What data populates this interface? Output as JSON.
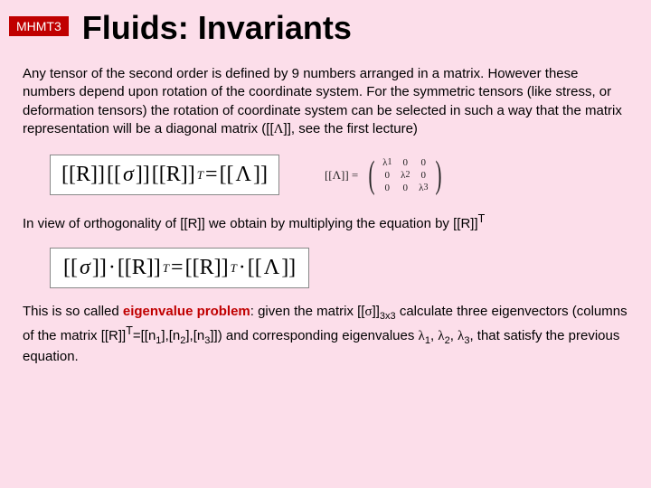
{
  "header": {
    "course_tag": "MHMT3",
    "title": "Fluids: Invariants",
    "bg_color": "#fcdeea",
    "tag_bg": "#c00000",
    "title_fontsize": 36
  },
  "paragraphs": {
    "p1_a": "Any tensor of the second order is defined by 9 numbers arranged in a matrix. However these numbers depend upon rotation of the coordinate system. For the symmetric tensors (like stress, or deformation tensors) the rotation of coordinate system can be selected in such a way that the matrix representation will be a diagonal matrix ([[",
    "p1_lambda": "Λ",
    "p1_b": "]], see the first lecture)",
    "p2_a": "In view of orthogonality of [[R]] we obtain by multiplying the equation by [[R]]",
    "p2_supT": "T",
    "p3_a": "This is so called ",
    "p3_eigen": "eigenvalue problem",
    "p3_b": ": given the matrix [[",
    "p3_sigma": "σ",
    "p3_c": "]]",
    "p3_dim": "3x3",
    "p3_d": " calculate three eigenvectors (columns of the matrix [[R]]",
    "p3_supT": "T",
    "p3_e": "=[[n",
    "p3_n1": "1",
    "p3_f": "],[n",
    "p3_n2": "2",
    "p3_g": "],[n",
    "p3_n3": "3",
    "p3_h": "]]) and corresponding eigenvalues ",
    "p3_l": "λ",
    "p3_l1": "1",
    "p3_l2": "2",
    "p3_l3": "3",
    "p3_i": ", that satisfy the previous equation."
  },
  "eq1": {
    "R": "[[R]]",
    "sigma": "σ",
    "eq": " = ",
    "Lambda": "Λ",
    "T": "T",
    "dot": "[["
  },
  "eq_small": {
    "lhs": "[[Λ]] =",
    "l": "λ",
    "z": "0",
    "s1": "1",
    "s2": "2",
    "s3": "3"
  },
  "eq2": {
    "sigma": "σ",
    "R": "[[R]]",
    "eq": " = ",
    "Lambda": "Λ",
    "T": "T",
    "cdot": "·"
  },
  "style": {
    "highlight_color": "#c00000",
    "body_fontsize": 15,
    "body_font": "Arial"
  }
}
